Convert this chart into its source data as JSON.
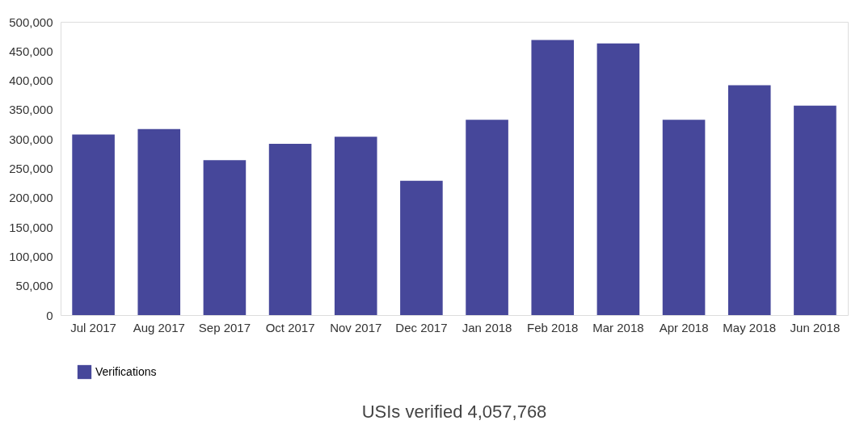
{
  "chart_data": {
    "type": "bar",
    "categories": [
      "Jul 2017",
      "Aug 2017",
      "Sep 2017",
      "Oct 2017",
      "Nov 2017",
      "Dec 2017",
      "Jan 2018",
      "Feb 2018",
      "Mar 2018",
      "Apr 2018",
      "May 2018",
      "Jun 2018"
    ],
    "series": [
      {
        "name": "Verifications",
        "color": "#46479a",
        "values": [
          308000,
          317000,
          264000,
          292000,
          304000,
          229000,
          333000,
          469000,
          463000,
          333000,
          392000,
          357000
        ]
      }
    ],
    "ylim": [
      0,
      500000
    ],
    "yticks": [
      {
        "value": 0,
        "label": "0"
      },
      {
        "value": 50000,
        "label": "50,000"
      },
      {
        "value": 100000,
        "label": "100,000"
      },
      {
        "value": 150000,
        "label": "150,000"
      },
      {
        "value": 200000,
        "label": "200,000"
      },
      {
        "value": 250000,
        "label": "250,000"
      },
      {
        "value": 300000,
        "label": "300,000"
      },
      {
        "value": 350000,
        "label": "350,000"
      },
      {
        "value": 400000,
        "label": "400,000"
      },
      {
        "value": 450000,
        "label": "450,000"
      },
      {
        "value": 500000,
        "label": "500,000"
      }
    ],
    "legend": "bottom",
    "grid": false,
    "annotations": [
      "USIs verified 4,057,768"
    ]
  }
}
